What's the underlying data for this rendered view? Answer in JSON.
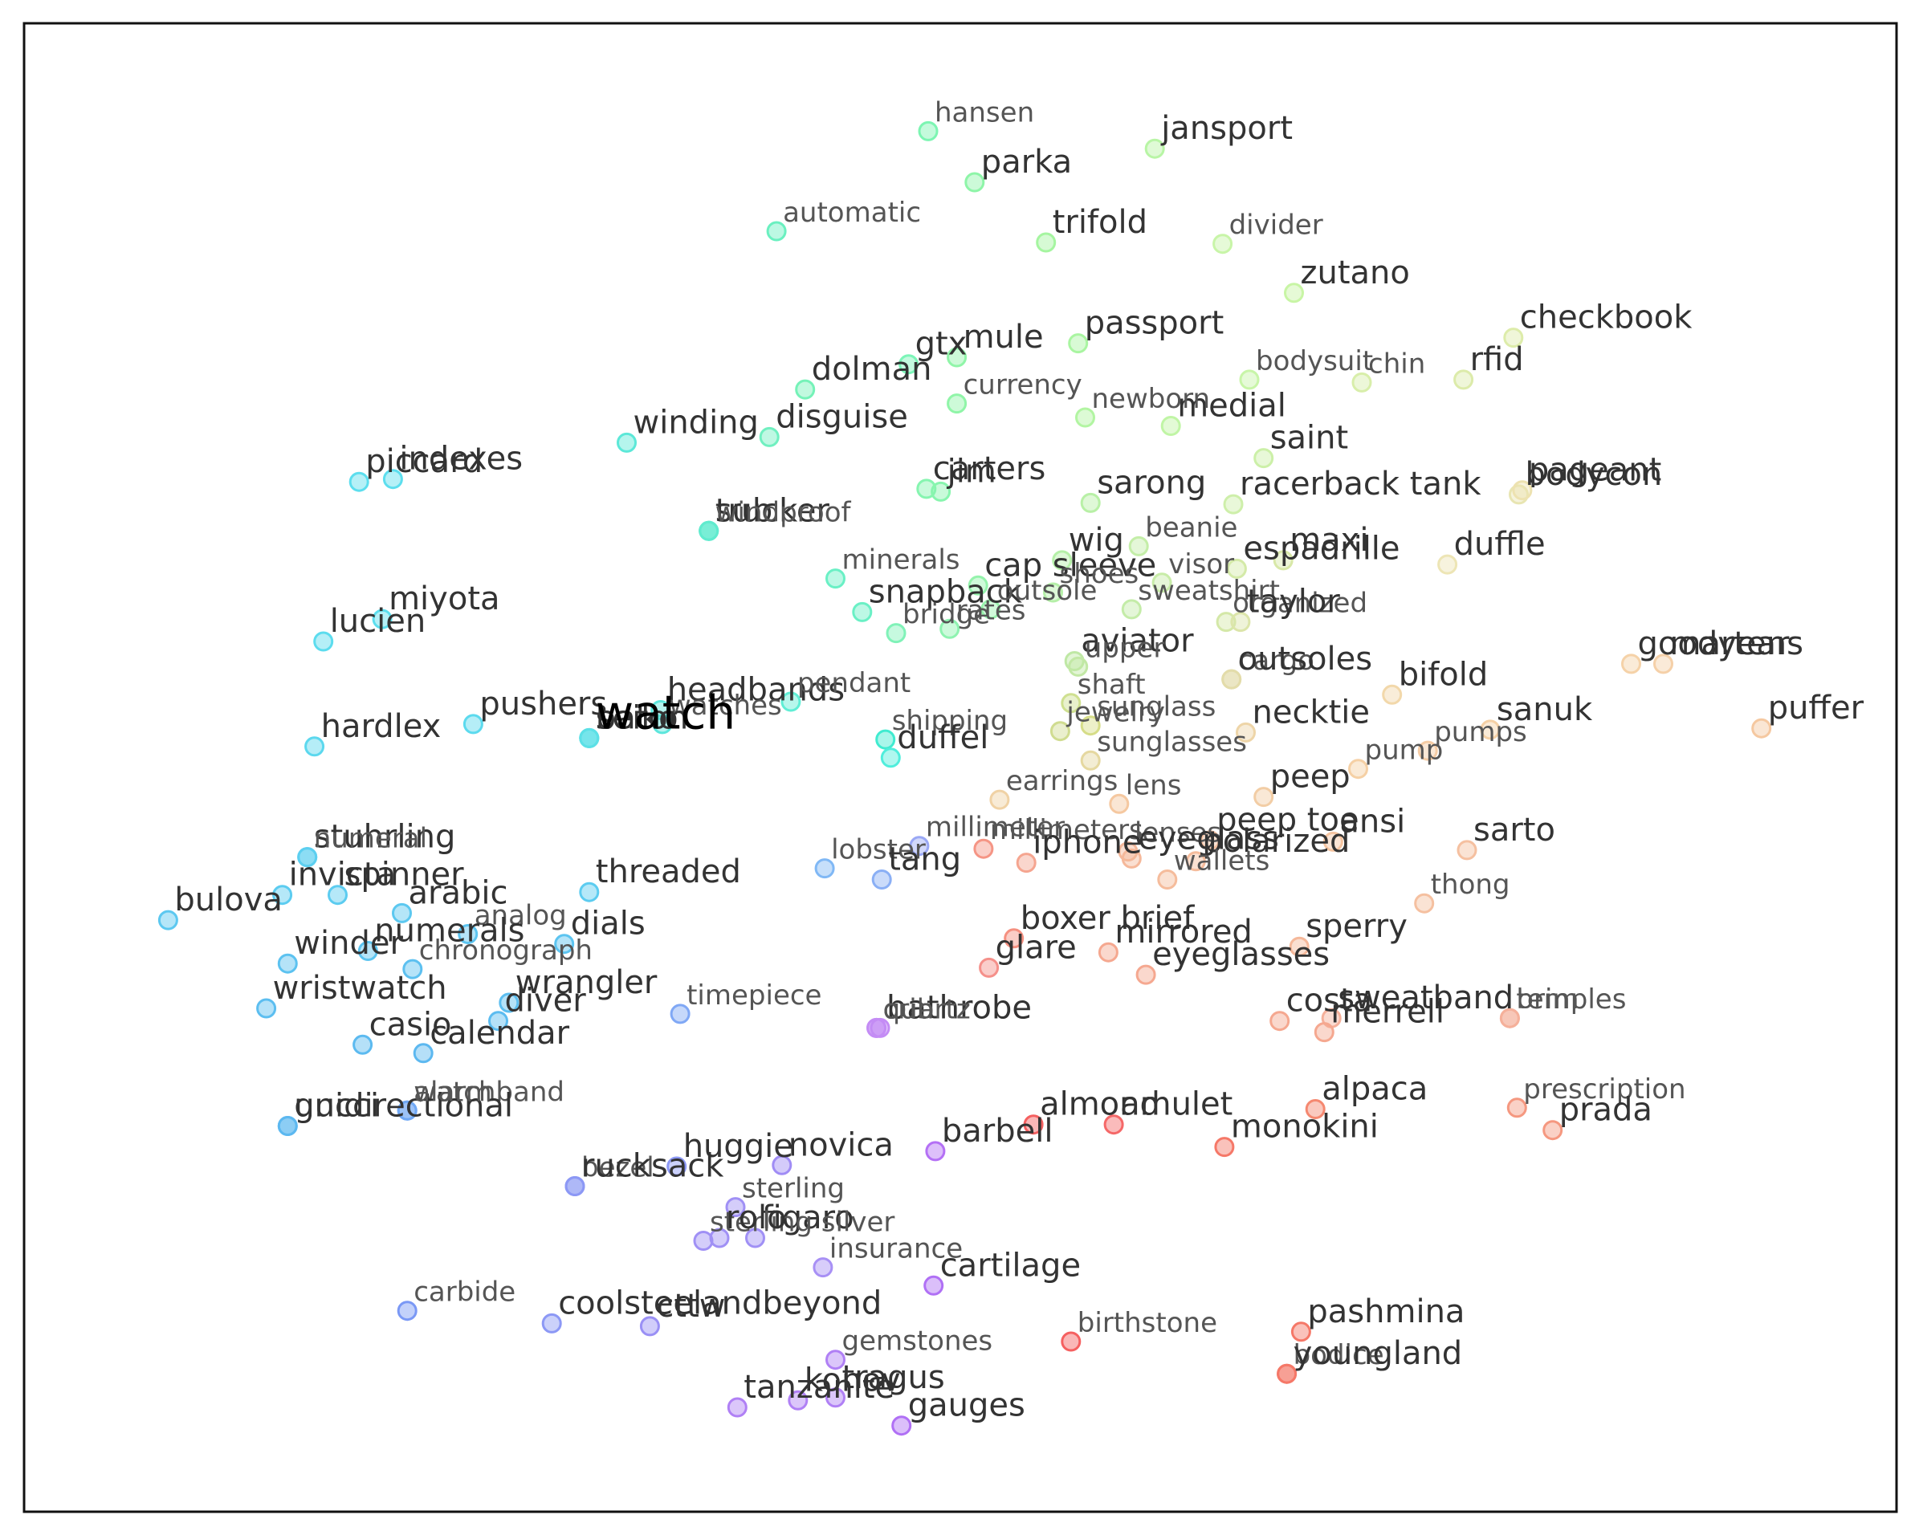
{
  "chart_data": {
    "type": "scatter",
    "title": "",
    "xlabel": "",
    "ylabel": "",
    "axes_visible": false,
    "grid": false,
    "xlim": [
      0,
      1000
    ],
    "ylim": [
      0,
      1000
    ],
    "focus_word": "watch",
    "points": [
      {
        "label": "hansen",
        "x": 482,
        "y": 45.5,
        "color": "#7CF5B2",
        "light": true
      },
      {
        "label": "jansport",
        "x": 609,
        "y": 58,
        "color": "#B8F5A5"
      },
      {
        "label": "parka",
        "x": 508,
        "y": 82,
        "color": "#8EF5A8"
      },
      {
        "label": "automatic",
        "x": 397,
        "y": 117,
        "color": "#6AF0C0",
        "light": true
      },
      {
        "label": "trifold",
        "x": 548,
        "y": 125,
        "color": "#A5F5A0"
      },
      {
        "label": "divider",
        "x": 647,
        "y": 126,
        "color": "#C8F5A8",
        "light": true
      },
      {
        "label": "zutano",
        "x": 687,
        "y": 161,
        "color": "#C8F5A5"
      },
      {
        "label": "checkbook",
        "x": 810,
        "y": 193,
        "color": "#DDECAA"
      },
      {
        "label": "passport",
        "x": 566,
        "y": 197,
        "color": "#A9F5A1"
      },
      {
        "label": "mule",
        "x": 498,
        "y": 207,
        "color": "#90F5A8"
      },
      {
        "label": "gtx",
        "x": 471,
        "y": 212,
        "color": "#7CF5B8"
      },
      {
        "label": "bodysuit",
        "x": 662,
        "y": 223,
        "color": "#C8F5A8",
        "light": true
      },
      {
        "label": "chin",
        "x": 725,
        "y": 225,
        "color": "#D8EEAA",
        "light": true
      },
      {
        "label": "rfid",
        "x": 782,
        "y": 223,
        "color": "#DCEBAA"
      },
      {
        "label": "currency",
        "x": 498,
        "y": 240,
        "color": "#90F5A8",
        "light": true
      },
      {
        "label": "dolman",
        "x": 413,
        "y": 230,
        "color": "#75F2B8"
      },
      {
        "label": "medial",
        "x": 618,
        "y": 256,
        "color": "#C0F5A5"
      },
      {
        "label": "disguise",
        "x": 393,
        "y": 264,
        "color": "#70F0C0"
      },
      {
        "label": "newborn",
        "x": 570,
        "y": 250,
        "color": "#B2F5A2",
        "light": true
      },
      {
        "label": "winding",
        "x": 313,
        "y": 268,
        "color": "#5CE8D8"
      },
      {
        "label": "piccard",
        "x": 163,
        "y": 296,
        "color": "#5CDEEE"
      },
      {
        "label": "indexes",
        "x": 182,
        "y": 294,
        "color": "#5CDEEE"
      },
      {
        "label": "saint",
        "x": 670,
        "y": 279,
        "color": "#CCF0A8"
      },
      {
        "label": "bodycon",
        "x": 813,
        "y": 305,
        "color": "#E8E5B2"
      },
      {
        "label": "pageant",
        "x": 815,
        "y": 302,
        "color": "#EDE2B0"
      },
      {
        "label": "carters",
        "x": 481,
        "y": 301,
        "color": "#86F5B0"
      },
      {
        "label": "jim",
        "x": 489,
        "y": 303,
        "color": "#88F5AE"
      },
      {
        "label": "racerback tank",
        "x": 653,
        "y": 312,
        "color": "#CEEFAA"
      },
      {
        "label": "sub",
        "x": 359,
        "y": 331,
        "color": "#60EBCE"
      },
      {
        "label": "trucker",
        "x": 359,
        "y": 331,
        "color": "#60EBCE"
      },
      {
        "label": "windproof",
        "x": 359,
        "y": 331,
        "color": "#60EBCE",
        "light": true
      },
      {
        "label": "sarong",
        "x": 573,
        "y": 311,
        "color": "#B8F0A6"
      },
      {
        "label": "beanie",
        "x": 600,
        "y": 342,
        "color": "#C4EEA8",
        "light": true
      },
      {
        "label": "wig",
        "x": 557,
        "y": 352,
        "color": "#B5F0A8"
      },
      {
        "label": "visor",
        "x": 613,
        "y": 368,
        "color": "#C8ECA8",
        "light": true
      },
      {
        "label": "duffle",
        "x": 773,
        "y": 355,
        "color": "#EDE5B5"
      },
      {
        "label": "minerals",
        "x": 430,
        "y": 365,
        "color": "#6AF0C5",
        "light": true
      },
      {
        "label": "cap sleeve",
        "x": 510,
        "y": 370,
        "color": "#95F3AC"
      },
      {
        "label": "shoes",
        "x": 552,
        "y": 375,
        "color": "#B5EFA8",
        "light": true
      },
      {
        "label": "maxi",
        "x": 681,
        "y": 352,
        "color": "#D8E8A8"
      },
      {
        "label": "espadrille",
        "x": 655,
        "y": 358,
        "color": "#D4EAA8"
      },
      {
        "label": "miyota",
        "x": 176,
        "y": 394,
        "color": "#5CDEEE"
      },
      {
        "label": "lucien",
        "x": 143,
        "y": 410,
        "color": "#5CDCEE"
      },
      {
        "label": "snapback",
        "x": 445,
        "y": 389,
        "color": "#6AF0C5"
      },
      {
        "label": "outsole",
        "x": 517,
        "y": 387,
        "color": "#98F2AC",
        "light": true
      },
      {
        "label": "organized",
        "x": 649,
        "y": 396,
        "color": "#D4E8A8",
        "light": true
      },
      {
        "label": "sweatshirt",
        "x": 596,
        "y": 387,
        "color": "#C4ECA8",
        "light": true
      },
      {
        "label": "rates",
        "x": 494,
        "y": 401,
        "color": "#8EF3B0",
        "light": true
      },
      {
        "label": "bridge",
        "x": 464,
        "y": 404,
        "color": "#80F2B8",
        "light": true
      },
      {
        "label": "taylor",
        "x": 657,
        "y": 396,
        "color": "#DCE5AA"
      },
      {
        "label": "goodyear",
        "x": 876,
        "y": 426,
        "color": "#F5D2A8"
      },
      {
        "label": "martens",
        "x": 894,
        "y": 426,
        "color": "#F5D0A8"
      },
      {
        "label": "headbands",
        "x": 332,
        "y": 459,
        "color": "#5CE6DC"
      },
      {
        "label": "cargo",
        "x": 652,
        "y": 437,
        "color": "#E3DCAA",
        "light": true
      },
      {
        "label": "outsoles",
        "x": 652,
        "y": 437,
        "color": "#E3DCAA"
      },
      {
        "label": "aviator",
        "x": 564,
        "y": 424,
        "color": "#BFE8A5"
      },
      {
        "label": "upper",
        "x": 566,
        "y": 428,
        "color": "#C2E8A5",
        "light": true
      },
      {
        "label": "pendant",
        "x": 405,
        "y": 453,
        "color": "#60EED5",
        "light": true
      },
      {
        "label": "shaft",
        "x": 562,
        "y": 454,
        "color": "#CFE090",
        "light": true
      },
      {
        "label": "bifold",
        "x": 742,
        "y": 448,
        "color": "#F2D8AA"
      },
      {
        "label": "sanuk",
        "x": 797,
        "y": 473,
        "color": "#F5D0A5"
      },
      {
        "label": "puffer",
        "x": 949,
        "y": 472,
        "color": "#F5C8A0"
      },
      {
        "label": "pushers",
        "x": 227,
        "y": 469,
        "color": "#5CDAEE"
      },
      {
        "label": "hardlex",
        "x": 138,
        "y": 485,
        "color": "#5CD8EE"
      },
      {
        "label": "watches",
        "x": 333,
        "y": 469,
        "color": "#5CE6DC",
        "light": true
      },
      {
        "label": "shipping",
        "x": 458,
        "y": 480,
        "color": "#40EBD0",
        "light": true
      },
      {
        "label": "sunglass",
        "x": 573,
        "y": 470,
        "color": "#D6DD88",
        "light": true
      },
      {
        "label": "jewelry",
        "x": 556,
        "y": 474,
        "color": "#D0DC90",
        "light": true
      },
      {
        "label": "pumps",
        "x": 762,
        "y": 488,
        "color": "#F5CCA5",
        "light": true
      },
      {
        "label": "necktie",
        "x": 660,
        "y": 475,
        "color": "#EED5A8"
      },
      {
        "label": "baton",
        "x": 292,
        "y": 479,
        "color": "#5CE0E6"
      },
      {
        "label": "duffel",
        "x": 461,
        "y": 493,
        "color": "#50EEDC"
      },
      {
        "label": "earrings",
        "x": 522,
        "y": 523,
        "color": "#F0D2A5",
        "light": true
      },
      {
        "label": "sunglasses",
        "x": 573,
        "y": 495,
        "color": "#E5D8A0",
        "light": true
      },
      {
        "label": "lens",
        "x": 589,
        "y": 526,
        "color": "#F5C8A0",
        "light": true
      },
      {
        "label": "pump",
        "x": 723,
        "y": 501,
        "color": "#F5D0A5",
        "light": true
      },
      {
        "label": "peep",
        "x": 670,
        "y": 521,
        "color": "#F2CDA5"
      },
      {
        "label": "seiko",
        "x": 292,
        "y": 479,
        "color": "#5CE0E6"
      },
      {
        "label": "watch",
        "x": 292,
        "y": 479,
        "color": "#5CE0E6",
        "focus": true
      },
      {
        "label": "millimeter",
        "x": 477,
        "y": 556,
        "color": "#9AA8F5",
        "light": true
      },
      {
        "label": "lenses",
        "x": 594,
        "y": 560,
        "color": "#F5B89A",
        "light": true
      },
      {
        "label": "eyeglass",
        "x": 596,
        "y": 565,
        "color": "#F5B89A"
      },
      {
        "label": "peep toe",
        "x": 640,
        "y": 552,
        "color": "#F5C0A0"
      },
      {
        "label": "stuhrling",
        "x": 134,
        "y": 564,
        "color": "#5CCFF0"
      },
      {
        "label": "spinner",
        "x": 151,
        "y": 591,
        "color": "#5CCCF0"
      },
      {
        "label": "numeral",
        "x": 134,
        "y": 564,
        "color": "#5CCFF0",
        "light": true
      },
      {
        "label": "millimeters",
        "x": 513,
        "y": 558,
        "color": "#F59585",
        "light": true
      },
      {
        "label": "iphone",
        "x": 537,
        "y": 568,
        "color": "#F5A590"
      },
      {
        "label": "ansi",
        "x": 709,
        "y": 553,
        "color": "#F5C4A0"
      },
      {
        "label": "sarto",
        "x": 784,
        "y": 559,
        "color": "#F5C0A0"
      },
      {
        "label": "invicta",
        "x": 120,
        "y": 591,
        "color": "#5CCCF0"
      },
      {
        "label": "threaded",
        "x": 292,
        "y": 589,
        "color": "#5CCCF0"
      },
      {
        "label": "lobster",
        "x": 424,
        "y": 572,
        "color": "#80B8F5",
        "light": true
      },
      {
        "label": "polarized",
        "x": 632,
        "y": 567,
        "color": "#F5BC9C"
      },
      {
        "label": "wallets",
        "x": 616,
        "y": 580,
        "color": "#F5BC9C",
        "light": true
      },
      {
        "label": "thong",
        "x": 760,
        "y": 597,
        "color": "#F5C0A0",
        "light": true
      },
      {
        "label": "bulova",
        "x": 56,
        "y": 609,
        "color": "#5CC8F0"
      },
      {
        "label": "arabic",
        "x": 187,
        "y": 604,
        "color": "#5CC8F0"
      },
      {
        "label": "analog",
        "x": 224,
        "y": 619,
        "color": "#5CC4F0",
        "light": true
      },
      {
        "label": "tang",
        "x": 456,
        "y": 580,
        "color": "#8AAFF5"
      },
      {
        "label": "boxer brief",
        "x": 530,
        "y": 622,
        "color": "#F59080"
      },
      {
        "label": "sperry",
        "x": 690,
        "y": 628,
        "color": "#F5B89A"
      },
      {
        "label": "mirrored",
        "x": 583,
        "y": 632,
        "color": "#F5A890"
      },
      {
        "label": "numerals",
        "x": 168,
        "y": 631,
        "color": "#5CC4F0"
      },
      {
        "label": "dials",
        "x": 278,
        "y": 626,
        "color": "#5CC4F0"
      },
      {
        "label": "glare",
        "x": 516,
        "y": 643,
        "color": "#F5908A"
      },
      {
        "label": "eyeglasses",
        "x": 604,
        "y": 648,
        "color": "#F5A890"
      },
      {
        "label": "sweatband",
        "x": 708,
        "y": 679,
        "color": "#F5B09A"
      },
      {
        "label": "chronograph",
        "x": 193,
        "y": 644,
        "color": "#5CC0F0",
        "light": true
      },
      {
        "label": "winder",
        "x": 123,
        "y": 640,
        "color": "#5CC2F0"
      },
      {
        "label": "wrangler",
        "x": 247,
        "y": 668,
        "color": "#5CBEF0"
      },
      {
        "label": "timepiece",
        "x": 343,
        "y": 676,
        "color": "#80A8F5",
        "light": true
      },
      {
        "label": "bathrobe",
        "x": 455,
        "y": 686,
        "color": "#C48CF5"
      },
      {
        "label": "costa",
        "x": 679,
        "y": 681,
        "color": "#F5A890"
      },
      {
        "label": "brim",
        "x": 808,
        "y": 679,
        "color": "#F5B09A",
        "light": true
      },
      {
        "label": "merrell",
        "x": 704,
        "y": 689,
        "color": "#F5A890"
      },
      {
        "label": "temples",
        "x": 808,
        "y": 679,
        "color": "#F5B09A",
        "light": true
      },
      {
        "label": "wristwatch",
        "x": 111,
        "y": 672,
        "color": "#5CBEF0"
      },
      {
        "label": "diver",
        "x": 241,
        "y": 681,
        "color": "#5CBCF0"
      },
      {
        "label": "quartz",
        "x": 453,
        "y": 686,
        "color": "#C48CF5",
        "light": true
      },
      {
        "label": "crib",
        "x": 453,
        "y": 686,
        "color": "#C48CF5",
        "light": true
      },
      {
        "label": "calendar",
        "x": 199,
        "y": 704,
        "color": "#5CB8F0"
      },
      {
        "label": "casio",
        "x": 165,
        "y": 698,
        "color": "#5CBAF0"
      },
      {
        "label": "gucci",
        "x": 123,
        "y": 756,
        "color": "#5CB8F0"
      },
      {
        "label": "watchband",
        "x": 190,
        "y": 745,
        "color": "#70A8F5",
        "light": true
      },
      {
        "label": "unidirectional",
        "x": 123,
        "y": 756,
        "color": "#5CB8F0"
      },
      {
        "label": "alarm",
        "x": 190,
        "y": 745,
        "color": "#70A8F5",
        "light": true
      },
      {
        "label": "almond",
        "x": 541,
        "y": 755,
        "color": "#F56060"
      },
      {
        "label": "amulet",
        "x": 586,
        "y": 755,
        "color": "#F56868"
      },
      {
        "label": "alpaca",
        "x": 699,
        "y": 744,
        "color": "#F58870"
      },
      {
        "label": "prescription",
        "x": 812,
        "y": 743,
        "color": "#F59880",
        "light": true
      },
      {
        "label": "prada",
        "x": 832,
        "y": 759,
        "color": "#F59880"
      },
      {
        "label": "huggie",
        "x": 341,
        "y": 785,
        "color": "#8C98F5"
      },
      {
        "label": "bezel",
        "x": 284,
        "y": 799,
        "color": "#8C98F5",
        "light": true
      },
      {
        "label": "novica",
        "x": 400,
        "y": 784,
        "color": "#A08CF5"
      },
      {
        "label": "barbell",
        "x": 486,
        "y": 774,
        "color": "#B470F5"
      },
      {
        "label": "monokini",
        "x": 648,
        "y": 771,
        "color": "#F57868"
      },
      {
        "label": "rucksack",
        "x": 284,
        "y": 799,
        "color": "#8C98F5"
      },
      {
        "label": "sterling",
        "x": 374,
        "y": 814,
        "color": "#A090F5",
        "light": true
      },
      {
        "label": "figaro",
        "x": 385,
        "y": 836,
        "color": "#A090F5"
      },
      {
        "label": "sterling silver",
        "x": 356,
        "y": 838,
        "color": "#A090F5",
        "light": true
      },
      {
        "label": "rolo",
        "x": 365,
        "y": 836,
        "color": "#A090F5"
      },
      {
        "label": "cartilage",
        "x": 485,
        "y": 870,
        "color": "#B070F5"
      },
      {
        "label": "insurance",
        "x": 423,
        "y": 857,
        "color": "#A890F5",
        "light": true
      },
      {
        "label": "birthstone",
        "x": 562,
        "y": 910,
        "color": "#F56060",
        "light": true
      },
      {
        "label": "carbide",
        "x": 190,
        "y": 888,
        "color": "#7A98F5",
        "light": true
      },
      {
        "label": "cttw",
        "x": 326,
        "y": 899,
        "color": "#9A90F5"
      },
      {
        "label": "coolsteelandbeyond",
        "x": 271,
        "y": 897,
        "color": "#8C98F5"
      },
      {
        "label": "pashmina",
        "x": 691,
        "y": 903,
        "color": "#F57868"
      },
      {
        "label": "bodice",
        "x": 683,
        "y": 933,
        "color": "#F57868",
        "light": true
      },
      {
        "label": "gemstones",
        "x": 430,
        "y": 923,
        "color": "#B080F5",
        "light": true
      },
      {
        "label": "youngland",
        "x": 683,
        "y": 933,
        "color": "#F57868"
      },
      {
        "label": "tragus",
        "x": 430,
        "y": 950,
        "color": "#B080F5"
      },
      {
        "label": "tanzanite",
        "x": 375,
        "y": 957,
        "color": "#B080F5"
      },
      {
        "label": "konov",
        "x": 409,
        "y": 952,
        "color": "#B080F5"
      },
      {
        "label": "gauges",
        "x": 467,
        "y": 970,
        "color": "#B070F5"
      }
    ]
  }
}
